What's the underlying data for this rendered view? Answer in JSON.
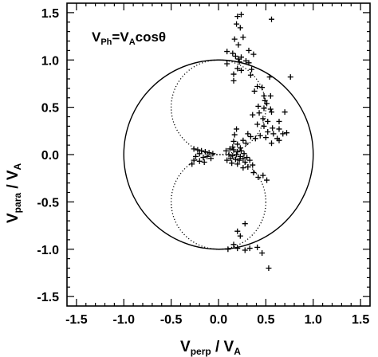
{
  "chart_data": {
    "type": "scatter",
    "title": "",
    "xlabel": {
      "main": "V",
      "sub": "perp",
      "rest": " / V",
      "sub2": "A"
    },
    "ylabel": {
      "main": "V",
      "sub": "para",
      "rest": " / V",
      "sub2": "A"
    },
    "annotation": {
      "a": "V",
      "a_sub": "Ph",
      "b": "=V",
      "b_sub": "A",
      "c": "cosθ"
    },
    "xlim": [
      -1.6,
      1.6
    ],
    "ylim": [
      -1.6,
      1.6
    ],
    "x_ticks": [
      "-1.5",
      "-1.0",
      "-0.5",
      "0.0",
      "0.5",
      "1.0",
      "1.5"
    ],
    "y_ticks": [
      "1.5",
      "1.0",
      "0.5",
      "0.0",
      "-0.5",
      "-1.0",
      "-1.5"
    ],
    "grid": false,
    "legend": "none",
    "curves": [
      {
        "name": "unit circle",
        "style": "solid"
      },
      {
        "name": "dotted cosine circles",
        "style": "dotted"
      }
    ],
    "points": [
      [
        0.24,
        1.48
      ],
      [
        0.2,
        1.46
      ],
      [
        0.19,
        1.38
      ],
      [
        0.23,
        1.34
      ],
      [
        0.56,
        1.43
      ],
      [
        0.17,
        1.22
      ],
      [
        0.26,
        1.24
      ],
      [
        0.21,
        1.16
      ],
      [
        0.32,
        1.1
      ],
      [
        0.09,
        1.09
      ],
      [
        0.15,
        1.07
      ],
      [
        0.18,
        1.04
      ],
      [
        0.21,
        1.01
      ],
      [
        0.22,
        0.98
      ],
      [
        0.24,
        1.03
      ],
      [
        0.37,
        1.06
      ],
      [
        0.09,
        0.96
      ],
      [
        0.29,
        0.99
      ],
      [
        0.32,
        0.97
      ],
      [
        0.2,
        0.91
      ],
      [
        0.24,
        0.89
      ],
      [
        0.35,
        0.9
      ],
      [
        0.16,
        0.85
      ],
      [
        0.34,
        0.84
      ],
      [
        0.54,
        0.82
      ],
      [
        0.76,
        0.82
      ],
      [
        0.16,
        0.78
      ],
      [
        0.41,
        0.72
      ],
      [
        0.46,
        0.71
      ],
      [
        0.38,
        0.67
      ],
      [
        0.48,
        0.62
      ],
      [
        0.55,
        0.62
      ],
      [
        0.49,
        0.57
      ],
      [
        0.51,
        0.54
      ],
      [
        0.42,
        0.51
      ],
      [
        0.48,
        0.49
      ],
      [
        0.55,
        0.48
      ],
      [
        0.36,
        0.42
      ],
      [
        0.43,
        0.44
      ],
      [
        0.56,
        0.45
      ],
      [
        0.7,
        0.45
      ],
      [
        0.47,
        0.38
      ],
      [
        0.52,
        0.35
      ],
      [
        0.64,
        0.35
      ],
      [
        0.41,
        0.32
      ],
      [
        0.48,
        0.3
      ],
      [
        0.57,
        0.28
      ],
      [
        0.64,
        0.27
      ],
      [
        0.52,
        0.24
      ],
      [
        0.58,
        0.22
      ],
      [
        0.68,
        0.22
      ],
      [
        0.44,
        0.2
      ],
      [
        0.5,
        0.18
      ],
      [
        0.62,
        0.17
      ],
      [
        0.72,
        0.23
      ],
      [
        0.39,
        0.17
      ],
      [
        0.31,
        0.22
      ],
      [
        0.34,
        0.19
      ],
      [
        0.26,
        0.15
      ],
      [
        0.19,
        0.27
      ],
      [
        0.17,
        0.21
      ],
      [
        0.16,
        0.14
      ],
      [
        0.2,
        0.11
      ],
      [
        0.15,
        0.08
      ],
      [
        0.23,
        0.07
      ],
      [
        0.29,
        0.12
      ],
      [
        0.64,
        0.15
      ],
      [
        0.56,
        0.12
      ],
      [
        -0.26,
        0.06
      ],
      [
        -0.22,
        0.05
      ],
      [
        -0.18,
        0.04
      ],
      [
        -0.14,
        0.03
      ],
      [
        -0.1,
        0.02
      ],
      [
        -0.2,
        0.01
      ],
      [
        -0.24,
        -0.02
      ],
      [
        -0.16,
        -0.03
      ],
      [
        -0.12,
        -0.02
      ],
      [
        -0.06,
        0.01
      ],
      [
        -0.26,
        -0.06
      ],
      [
        -0.2,
        -0.07
      ],
      [
        -0.15,
        -0.08
      ],
      [
        -0.28,
        -0.1
      ],
      [
        -0.08,
        -0.04
      ],
      [
        0.08,
        0.04
      ],
      [
        0.12,
        0.06
      ],
      [
        0.16,
        0.05
      ],
      [
        0.2,
        0.03
      ],
      [
        0.24,
        0.04
      ],
      [
        0.11,
        0.0
      ],
      [
        0.15,
        -0.01
      ],
      [
        0.19,
        0.0
      ],
      [
        0.23,
        -0.02
      ],
      [
        0.27,
        0.01
      ],
      [
        0.13,
        -0.04
      ],
      [
        0.18,
        -0.05
      ],
      [
        0.22,
        -0.06
      ],
      [
        0.26,
        -0.04
      ],
      [
        0.3,
        -0.03
      ],
      [
        0.09,
        -0.06
      ],
      [
        0.14,
        -0.09
      ],
      [
        0.2,
        -0.1
      ],
      [
        0.28,
        -0.08
      ],
      [
        0.33,
        -0.06
      ],
      [
        0.26,
        -0.14
      ],
      [
        0.31,
        -0.13
      ],
      [
        0.36,
        -0.11
      ],
      [
        0.37,
        -0.19
      ],
      [
        0.42,
        -0.24
      ],
      [
        0.47,
        -0.22
      ],
      [
        0.51,
        -0.27
      ],
      [
        0.28,
        -0.73
      ],
      [
        0.2,
        -0.81
      ],
      [
        0.23,
        -0.86
      ],
      [
        0.16,
        -0.95
      ],
      [
        0.1,
        -1.0
      ],
      [
        0.2,
        -0.99
      ],
      [
        0.28,
        -1.01
      ],
      [
        0.33,
        -0.99
      ],
      [
        0.41,
        -0.98
      ],
      [
        0.46,
        -1.04
      ],
      [
        0.53,
        -1.2
      ]
    ]
  }
}
